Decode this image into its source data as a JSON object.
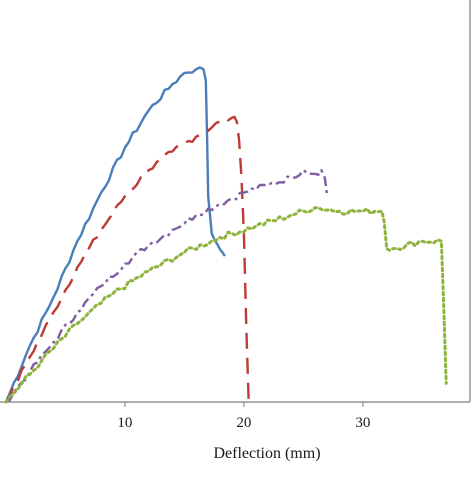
{
  "chart_data": {
    "type": "line",
    "title": "",
    "xlabel": "Deflection (mm)",
    "ylabel": "",
    "xlim": [
      -1,
      39
    ],
    "ylim": [
      0,
      100
    ],
    "x_ticks": [
      10,
      20,
      30
    ],
    "x_tick_labels": [
      "10",
      "20",
      "30"
    ],
    "grid": false,
    "legend": "none",
    "series": [
      {
        "color": "#4a7ebb",
        "dash": "solid",
        "x": [
          0,
          2,
          4,
          6,
          8,
          10,
          12,
          14,
          15,
          16,
          16.6,
          16.8,
          16.9,
          17.0,
          17.3,
          17.8,
          18.2,
          18.4
        ],
        "y": [
          0,
          15,
          28,
          43,
          56,
          68,
          78,
          85,
          88,
          89,
          89,
          86,
          72,
          55,
          45,
          42,
          40,
          39
        ]
      },
      {
        "color": "#be3a34",
        "dash": "longdash",
        "x": [
          0,
          2,
          4,
          6,
          8,
          10,
          12,
          14,
          16,
          18,
          19,
          19.4,
          19.6,
          19.8,
          20,
          20.2,
          20.4
        ],
        "y": [
          0,
          12,
          24,
          36,
          46,
          55,
          62,
          67,
          71,
          75,
          76,
          75,
          70,
          60,
          45,
          20,
          0
        ]
      },
      {
        "color": "#7f5fa0",
        "dash": "dashdot",
        "x": [
          0,
          2,
          4,
          6,
          8,
          10,
          12,
          14,
          16,
          18,
          20,
          22,
          24,
          25,
          26,
          26.5,
          26.8,
          27.0
        ],
        "y": [
          0,
          8,
          16,
          24,
          31,
          37,
          42,
          46,
          50,
          53,
          56,
          58,
          60,
          62,
          61,
          62,
          60,
          55
        ]
      },
      {
        "color": "#8db53d",
        "dash": "dotted",
        "x": [
          0,
          3,
          6,
          9,
          12,
          15,
          18,
          21,
          24,
          26,
          28,
          30,
          31,
          31.6,
          31.8,
          32,
          32.5,
          35,
          36.6,
          36.8,
          37.0
        ],
        "y": [
          0,
          11,
          21,
          29,
          35,
          40,
          44,
          47,
          50,
          52,
          51,
          51,
          51,
          51,
          48,
          41,
          41,
          43,
          43,
          25,
          5
        ]
      }
    ]
  }
}
